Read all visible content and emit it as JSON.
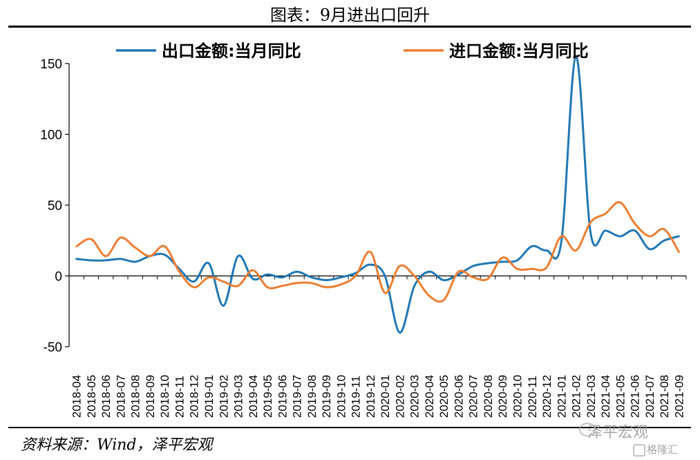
{
  "title": "图表：9月进出口回升",
  "source": "资料来源：Wind，泽平宏观",
  "watermark": {
    "text": "泽平宏观",
    "sub": "格隆汇"
  },
  "chart_data": {
    "type": "line",
    "categories": [
      "2018-04",
      "2018-05",
      "2018-06",
      "2018-07",
      "2018-08",
      "2018-09",
      "2018-10",
      "2018-11",
      "2018-12",
      "2019-01",
      "2019-02",
      "2019-03",
      "2019-04",
      "2019-05",
      "2019-06",
      "2019-07",
      "2019-08",
      "2019-09",
      "2019-10",
      "2019-11",
      "2019-12",
      "2020-01",
      "2020-02",
      "2020-03",
      "2020-04",
      "2020-05",
      "2020-06",
      "2020-07",
      "2020-08",
      "2020-09",
      "2020-10",
      "2020-11",
      "2020-12",
      "2021-01",
      "2021-02",
      "2021-03",
      "2021-04",
      "2021-05",
      "2021-06",
      "2021-07",
      "2021-08",
      "2021-09"
    ],
    "series": [
      {
        "name": "出口金额:当月同比",
        "color": "#1f77b4",
        "values": [
          12,
          11,
          11,
          12,
          10,
          14,
          15,
          5,
          -4,
          9,
          -21,
          14,
          -2,
          1,
          -1,
          3,
          -1,
          -3,
          -1,
          2,
          8,
          0,
          -40,
          -7,
          3,
          -3,
          1,
          7,
          9,
          10,
          11,
          21,
          18,
          24,
          155,
          30,
          32,
          28,
          32,
          19,
          25,
          28
        ]
      },
      {
        "name": "进口金额:当月同比",
        "color": "#ed7d31",
        "values": [
          21,
          26,
          14,
          27,
          20,
          14,
          21,
          3,
          -8,
          -1,
          -4,
          -7,
          4,
          -8,
          -7,
          -5,
          -5,
          -8,
          -6,
          0,
          17,
          -12,
          7,
          0,
          -14,
          -17,
          3,
          -1,
          -2,
          13,
          5,
          5,
          6,
          28,
          18,
          38,
          44,
          52,
          37,
          28,
          33,
          17
        ]
      }
    ],
    "ylim": [
      -50,
      150
    ],
    "yticks": [
      -50,
      0,
      50,
      100,
      150
    ],
    "legend": "top"
  }
}
